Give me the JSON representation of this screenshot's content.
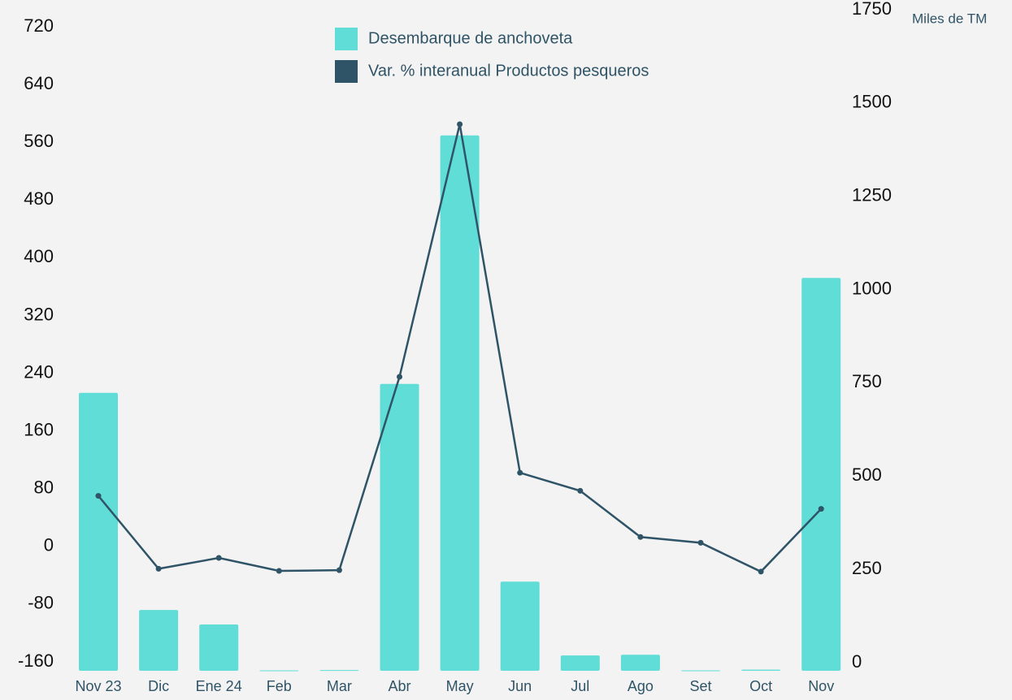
{
  "chart_data": {
    "type": "bar-line",
    "y2_label": "Miles de TM",
    "categories": [
      "Nov 23",
      "Dic",
      "Ene 24",
      "Feb",
      "Mar",
      "Abr",
      "May",
      "Jun",
      "Jul",
      "Ago",
      "Set",
      "Oct",
      "Nov"
    ],
    "series": [
      {
        "name": "Desembarque de anchoveta",
        "type": "bar",
        "axis": "y2",
        "color": "#5fddd6",
        "values": [
          745,
          163,
          124,
          1,
          2,
          769,
          1435,
          239,
          41,
          43,
          1,
          3,
          1053
        ]
      },
      {
        "name": "Var. % interanual Productos pesqueros",
        "type": "line",
        "axis": "y",
        "color": "#2f5467",
        "values": [
          70,
          -31,
          -16,
          -34,
          -33,
          235,
          585,
          102,
          77,
          13,
          5,
          -35,
          52
        ]
      }
    ],
    "ylim": [
      -160,
      720
    ],
    "yticks": [
      -160,
      -80,
      0,
      80,
      160,
      240,
      320,
      400,
      480,
      560,
      640,
      720
    ],
    "y2lim": [
      0,
      1750
    ],
    "y2ticks": [
      0,
      250,
      500,
      750,
      1000,
      1250,
      1500,
      1750
    ],
    "legend": "top-center"
  }
}
